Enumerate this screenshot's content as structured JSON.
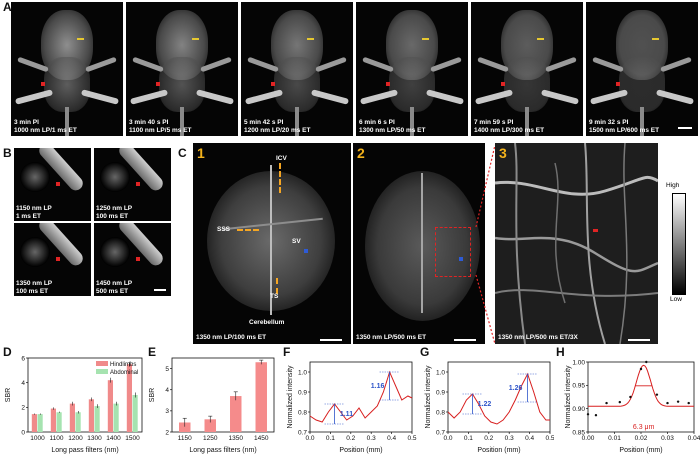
{
  "panels": {
    "A": "A",
    "B": "B",
    "C": "C",
    "D": "D",
    "E": "E",
    "F": "F",
    "G": "G",
    "H": "H"
  },
  "panelA": {
    "captions": [
      "3 min PI\n1000 nm LP/1 ms ET",
      "3 min 40 s PI\n1100 nm LP/5 ms ET",
      "5 min 42 s PI\n1200 nm LP/20 ms ET",
      "6 min 6 s PI\n1300 nm LP/50 ms ET",
      "7 min 59 s PI\n1400 nm LP/300 ms ET",
      "9 min 32 s PI\n1500 nm LP/600 ms ET"
    ]
  },
  "panelB": {
    "captions": [
      "1150 nm LP\n1 ms ET",
      "1250 nm LP\n100 ms ET",
      "1350 nm LP\n100 ms ET",
      "1450 nm LP\n500 ms ET"
    ]
  },
  "panelC": {
    "numbers": [
      "1",
      "2",
      "3"
    ],
    "labels": {
      "icv": "ICV",
      "sss": "SSS",
      "sv": "SV",
      "ts": "TS",
      "cerebellum": "Cerebellum"
    },
    "captions": [
      "1350 nm LP/100 ms ET",
      "1350 nm LP/500 ms ET",
      "1350 nm LP/500 ms ET/3X"
    ],
    "colorbar": {
      "high": "High",
      "low": "Low"
    }
  },
  "chart_data": [
    {
      "panel": "D",
      "type": "bar",
      "categories": [
        "1000",
        "1100",
        "1200",
        "1300",
        "1400",
        "1500"
      ],
      "series": [
        {
          "name": "Hindlimbs",
          "values": [
            1.45,
            1.9,
            2.3,
            2.65,
            4.2,
            5.5
          ],
          "errors": [
            0.05,
            0.1,
            0.15,
            0.15,
            0.2,
            0.2
          ],
          "color": "#f08a8a"
        },
        {
          "name": "Abdominal",
          "values": [
            1.45,
            1.6,
            1.6,
            2.1,
            2.3,
            3.0
          ],
          "errors": [
            0.05,
            0.05,
            0.1,
            0.15,
            0.15,
            0.2
          ],
          "color": "#a6e3b0"
        }
      ],
      "xlabel": "Long pass filters (nm)",
      "ylabel": "SBR",
      "ylim": [
        0,
        6
      ],
      "yticks": [
        "0",
        "2",
        "4",
        "6"
      ],
      "legend": "top-right"
    },
    {
      "panel": "E",
      "type": "bar",
      "categories": [
        "1150",
        "1250",
        "1350",
        "1450"
      ],
      "values": [
        2.45,
        2.6,
        3.7,
        5.3
      ],
      "errors": [
        0.2,
        0.15,
        0.2,
        0.1
      ],
      "xlabel": "Long pass filters (nm)",
      "ylabel": "SBR",
      "ylim": [
        2,
        5.5
      ],
      "yticks": [
        "2",
        "3",
        "4",
        "5"
      ]
    },
    {
      "panel": "F",
      "type": "line",
      "x": [
        0,
        0.03,
        0.06,
        0.09,
        0.12,
        0.15,
        0.18,
        0.21,
        0.24,
        0.27,
        0.3,
        0.33,
        0.36,
        0.39,
        0.42,
        0.45,
        0.48,
        0.5
      ],
      "y": [
        0.78,
        0.76,
        0.75,
        0.8,
        0.84,
        0.8,
        0.76,
        0.78,
        0.82,
        0.77,
        0.8,
        0.83,
        0.9,
        1.0,
        0.93,
        0.86,
        0.88,
        0.87
      ],
      "annotations": [
        "1.11",
        "1.16"
      ],
      "xlabel": "Position (mm)",
      "ylabel": "Normalized intensity",
      "xlim": [
        0,
        0.5
      ],
      "ylim": [
        0.7,
        1.05
      ],
      "xticks": [
        "0.0",
        "0.1",
        "0.2",
        "0.3",
        "0.4",
        "0.5"
      ],
      "yticks": [
        "0.7",
        "0.8",
        "0.9",
        "1.0"
      ]
    },
    {
      "panel": "G",
      "type": "line",
      "x": [
        0,
        0.03,
        0.06,
        0.09,
        0.12,
        0.15,
        0.18,
        0.21,
        0.24,
        0.27,
        0.3,
        0.33,
        0.36,
        0.39,
        0.42,
        0.45,
        0.48,
        0.5
      ],
      "y": [
        0.8,
        0.77,
        0.8,
        0.86,
        0.89,
        0.84,
        0.78,
        0.75,
        0.74,
        0.76,
        0.8,
        0.86,
        0.93,
        0.99,
        0.9,
        0.8,
        0.76,
        0.76
      ],
      "annotations": [
        "1.22",
        "1.26"
      ],
      "xlabel": "Position (mm)",
      "ylabel": "Normalized intensity",
      "xlim": [
        0,
        0.5
      ],
      "ylim": [
        0.7,
        1.05
      ],
      "xticks": [
        "0.0",
        "0.1",
        "0.2",
        "0.3",
        "0.4",
        "0.5"
      ],
      "yticks": [
        "0.7",
        "0.8",
        "0.9",
        "1.0"
      ]
    },
    {
      "panel": "H",
      "type": "scatter",
      "x": [
        0.0,
        0.003,
        0.007,
        0.012,
        0.016,
        0.02,
        0.022,
        0.026,
        0.03,
        0.034,
        0.038
      ],
      "y": [
        0.888,
        0.886,
        0.912,
        0.914,
        0.925,
        0.985,
        1.0,
        0.93,
        0.912,
        0.915,
        0.912
      ],
      "fit": {
        "baseline": 0.905,
        "peak": 0.993,
        "center": 0.021,
        "fwhm": 0.0063
      },
      "annotation": "6.3 μm",
      "xlabel": "Position (mm)",
      "ylabel": "Normalized intensity",
      "xlim": [
        0,
        0.04
      ],
      "ylim": [
        0.85,
        1.0
      ],
      "xticks": [
        "0.00",
        "0.01",
        "0.02",
        "0.03",
        "0.04"
      ],
      "yticks": [
        "0.85",
        "0.90",
        "0.95",
        "1.00"
      ]
    }
  ]
}
